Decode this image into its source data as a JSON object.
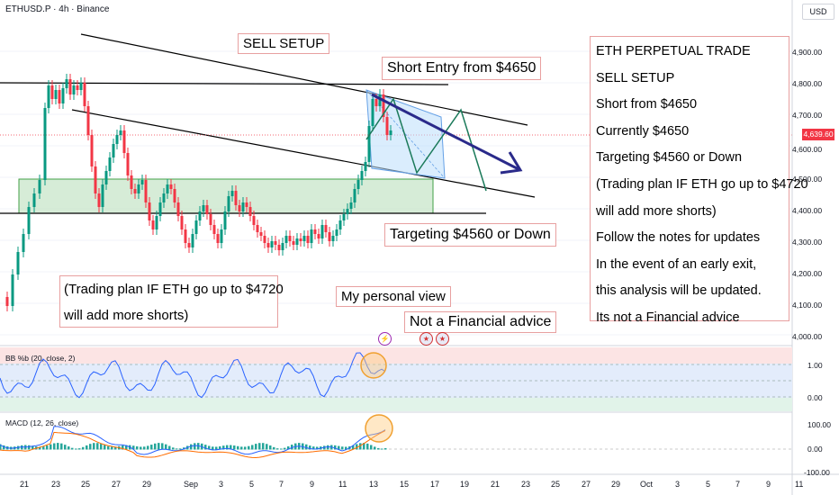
{
  "header": {
    "symbol": "ETHUSD.P · 4h · Binance",
    "currency": "USD"
  },
  "price_axis": {
    "labels": [
      "4,900.00",
      "4,800.00",
      "4,700.00",
      "4,600.00",
      "4,500.00",
      "4,400.00",
      "4,300.00",
      "4,200.00",
      "4,100.00",
      "4,000.00"
    ],
    "current_price": "4,639.60",
    "accent": "#f23645"
  },
  "time_axis": {
    "labels": [
      "21",
      "23",
      "25",
      "27",
      "29",
      "Sep",
      "3",
      "5",
      "7",
      "9",
      "11",
      "13",
      "15",
      "17",
      "19",
      "21",
      "23",
      "25",
      "27",
      "29",
      "Oct",
      "3",
      "5",
      "7",
      "9",
      "11"
    ]
  },
  "annotations": {
    "sell_setup": "SELL SETUP",
    "short_entry": "Short Entry from $4650",
    "targeting": "Targeting $4560 or Down",
    "personal_view": "My personal view",
    "not_advice": "Not a Financial advice",
    "plan_lines": [
      "(Trading plan IF ETH go up to $4720",
      "will add more shorts)"
    ],
    "panel_lines": [
      "ETH PERPETUAL TRADE",
      "SELL SETUP",
      "Short from $4650",
      "Currently $4650",
      "Targeting $4560 or Down",
      "(Trading plan IF ETH go up to $4720",
      "will add more shorts)",
      "Follow the notes for updates",
      "In the event of an early exit,",
      "this analysis will be updated.",
      "Its not a Financial advice"
    ]
  },
  "indicators": {
    "bb": {
      "label": "BB %b (20, close, 2)",
      "levels": [
        "1.00",
        "0.00"
      ]
    },
    "macd": {
      "label": "MACD (12, 26, close)",
      "levels": [
        "100.00",
        "0.00",
        "-100.00"
      ]
    }
  },
  "events": {
    "icons": [
      "lightning-icon",
      "us-flag-icon",
      "us-flag-icon"
    ]
  },
  "colors": {
    "up": "#089981",
    "down": "#f23645",
    "zone": "#c8e6c9",
    "arrow": "#2a2a8a"
  }
}
